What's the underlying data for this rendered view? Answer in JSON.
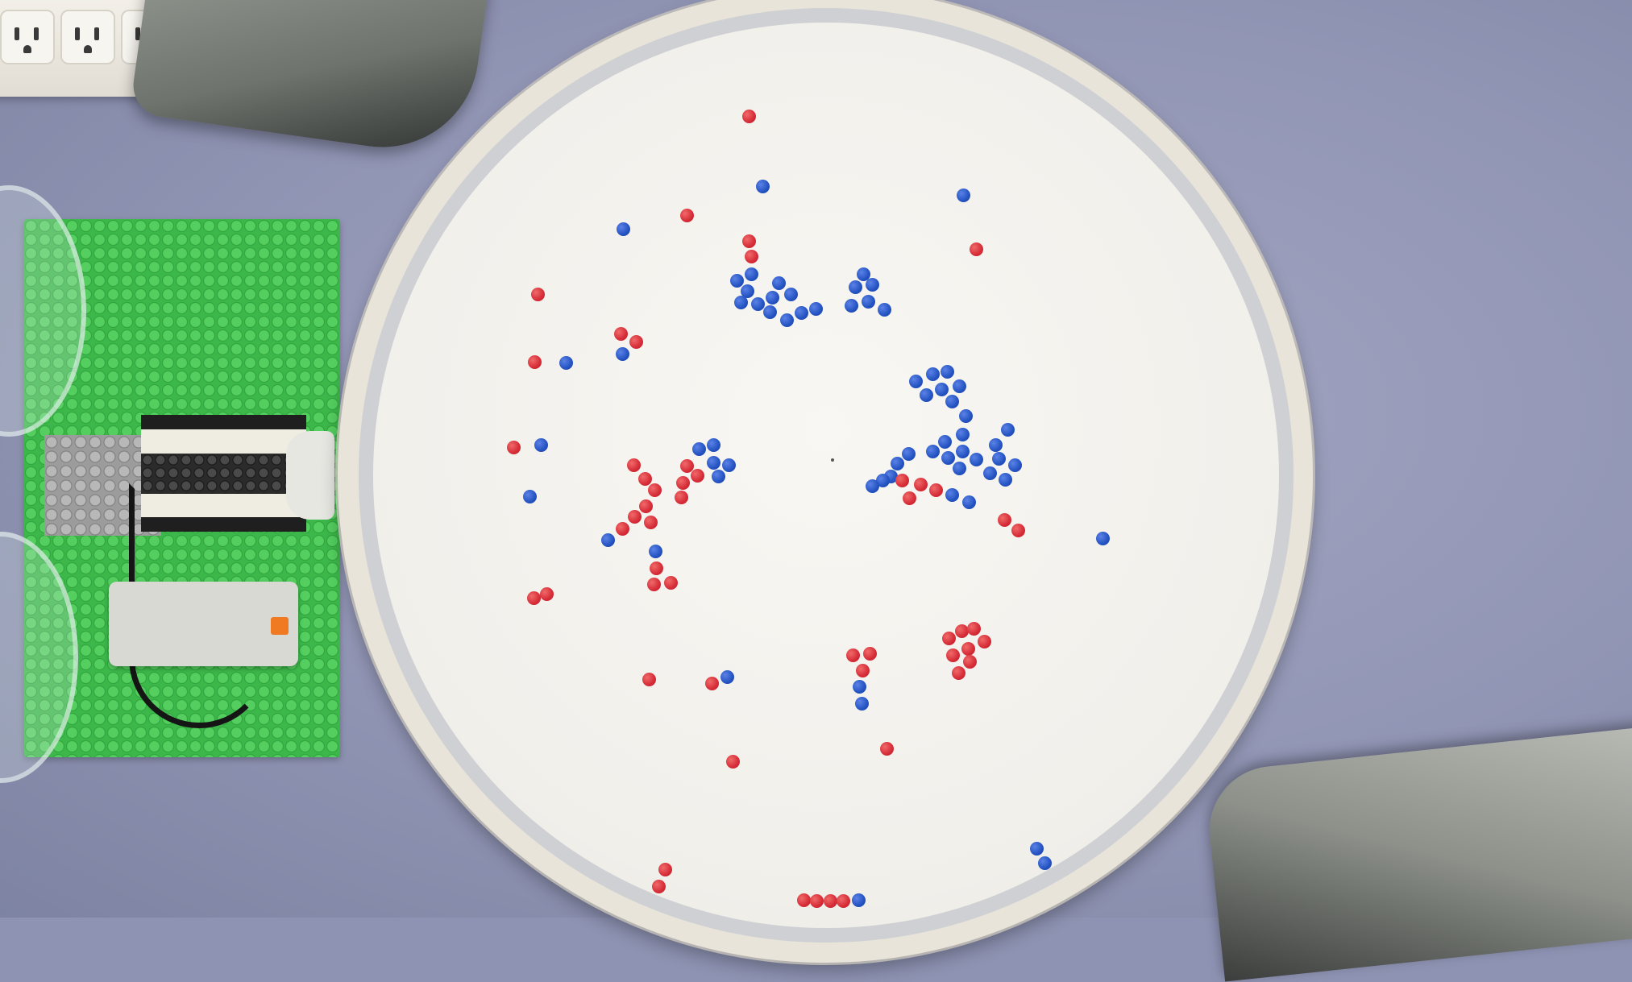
{
  "scene": {
    "description_kind": "photograph",
    "colors": {
      "bead_red": "#d62c37",
      "bead_blue": "#2453c2",
      "tablecloth": "#9296b5",
      "dish": "#f1efea",
      "lego_plate": "#3cb84a"
    }
  }
}
